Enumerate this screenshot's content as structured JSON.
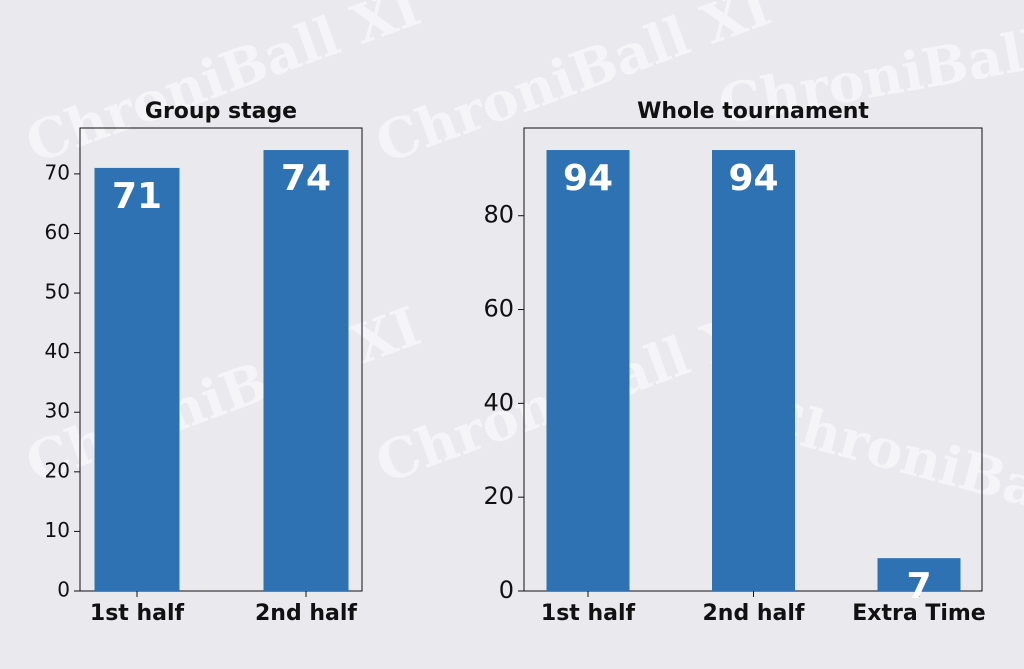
{
  "watermark": "ChroniBall XI",
  "chart_data": [
    {
      "type": "bar",
      "title": "Group stage",
      "categories": [
        "1st half",
        "2nd half"
      ],
      "values": [
        71,
        74
      ],
      "color": "#2e72b4",
      "ylim": [
        0,
        77.7
      ],
      "yticks": [
        0,
        10,
        20,
        30,
        40,
        50,
        60,
        70
      ]
    },
    {
      "type": "bar",
      "title": "Whole tournament",
      "categories": [
        "1st half",
        "2nd half",
        "Extra Time"
      ],
      "values": [
        94,
        94,
        7
      ],
      "color": "#2e72b4",
      "ylim": [
        0,
        98.7
      ],
      "yticks": [
        0,
        20,
        40,
        60,
        80
      ]
    }
  ]
}
